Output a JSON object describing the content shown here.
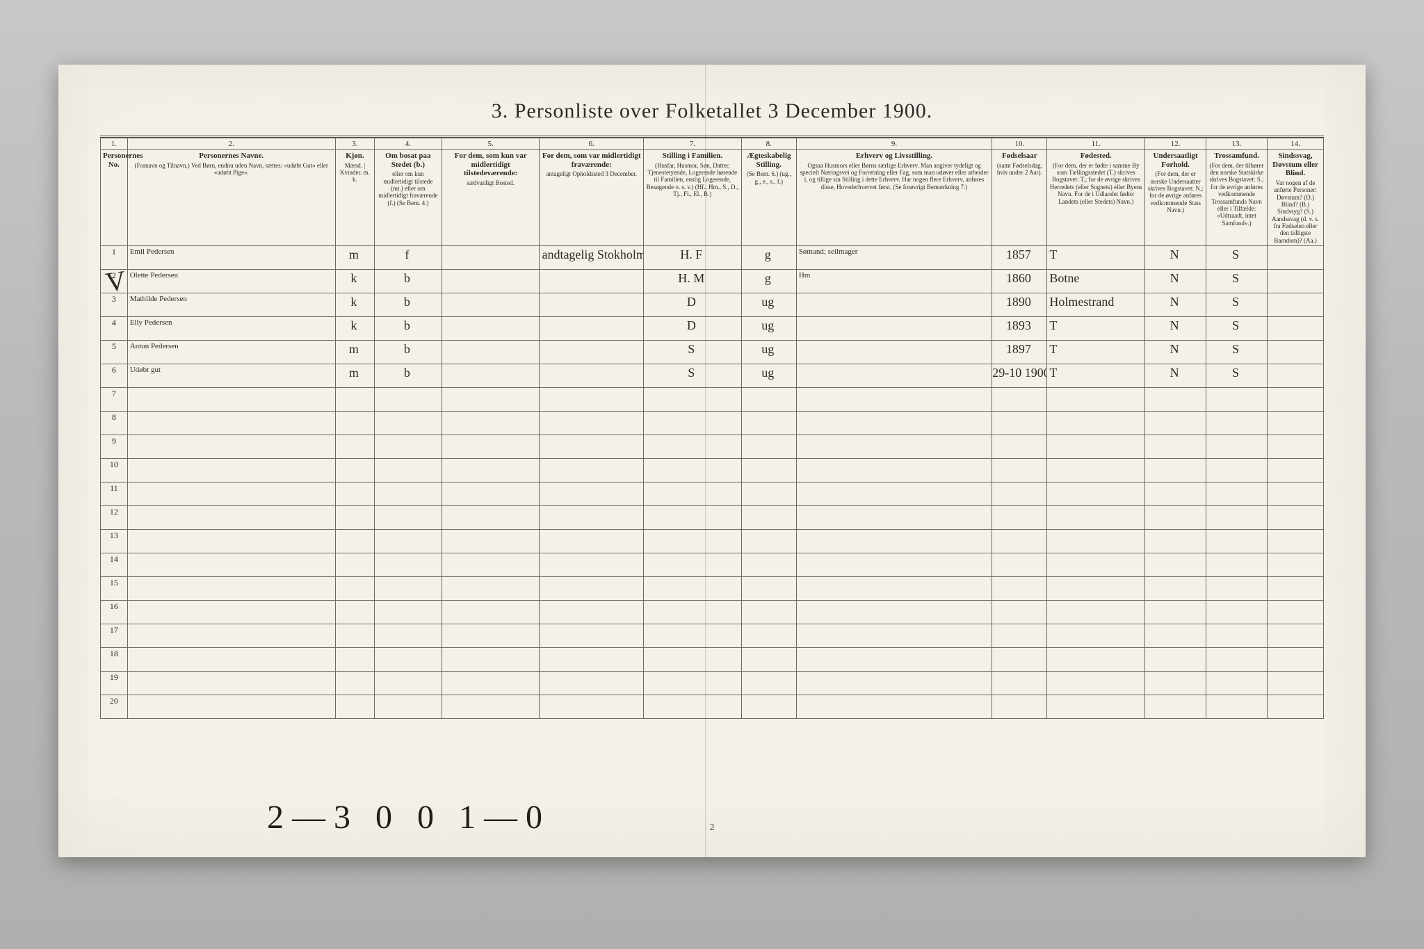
{
  "title": "3. Personliste over Folketallet 3 December 1900.",
  "page_number": "2",
  "bottom_annotation": "2—3 0 0 1—0",
  "columns": {
    "c1": {
      "num": "1.",
      "title": "Personernes No."
    },
    "c2": {
      "num": "2.",
      "title": "Personernes Navne.",
      "sub": "(Fornavn og Tilnavn.)\nVed Børn, endnu uden Navn, sættes: «udøbt Gut» eller «udøbt Pige»."
    },
    "c3": {
      "num": "3.",
      "title": "Kjøn.",
      "sub": "Mænd. | Kvinder.\nm.  k."
    },
    "c4": {
      "num": "4.",
      "title": "Om bosat paa Stedet (b.)",
      "sub": "eller om kun midlertidigt tilstede (mt.) eller om midlertidigt fraværende (f.)\n(Se Bem. 4.)"
    },
    "c5": {
      "num": "5.",
      "title": "For dem, som kun var midlertidigt tilstedeværende:",
      "sub": "sædvanligt Bosted."
    },
    "c6": {
      "num": "6.",
      "title": "For dem, som var midlertidigt fraværende:",
      "sub": "antageligt Opholdssted 3 December."
    },
    "c7": {
      "num": "7.",
      "title": "Stilling i Familien.",
      "sub": "(Husfar, Husmor, Søn, Datter, Tjenestetyende, Logerende hørende til Familien, enslig Logerende, Besøgende o. s. v.)\n(Hf., Hm., S., D., Tj., Fl., El., B.)"
    },
    "c8": {
      "num": "8.",
      "title": "Ægteskabelig Stilling.",
      "sub": "(Se Bem. 6.)\n(ug., g., e., s., f.)"
    },
    "c9": {
      "num": "9.",
      "title": "Erhverv og Livsstilling.",
      "sub": "Ogsaa Husmors eller Børns særlige Erhverv. Man angiver tydeligt og specielt Næringsvei og Forretning eller Fag, som man udøver eller arbeider i, og tillige sin Stilling i dette Erhverv. Har nogen flere Erhverv, anføres disse, Hovederhvervet først.\n(Se forøvrigt Bemærkning 7.)"
    },
    "c10": {
      "num": "10.",
      "title": "Fødselsaar",
      "sub": "(samt Fødselsdag, hvis under 2 Aar)."
    },
    "c11": {
      "num": "11.",
      "title": "Fødested.",
      "sub": "(For dem, der er fødte i samme By som Tællingsstedet (T.) skrives Bogstavet: T.; for de øvrige skrives Herredets (eller Sognets) eller Byens Navn. For de i Udlandet fødte: Landets (eller Stedets) Navn.)"
    },
    "c12": {
      "num": "12.",
      "title": "Undersaatligt Forhold.",
      "sub": "(For dem, der er norske Undersaatter skrives Bogstavet: N.; for de øvrige anføres vedkommende Stats Navn.)"
    },
    "c13": {
      "num": "13.",
      "title": "Trossamfund.",
      "sub": "(For dem, der tilhører den norske Statskirke skrives Bogstavet: S.; for de øvrige anføres vedkommende Trossamfunds Navn eller i Tilfælde: «Udtraadt, intet Samfund».)"
    },
    "c14": {
      "num": "14.",
      "title": "Sindssvag, Døvstum eller Blind.",
      "sub": "Var nogen af de anførte Personer:\nDøvstum? (D.)\nBlind? (B.)\nSindssyg? (S.)\nAandssvag (d. v. s. fra Fødselen eller den tidligste Barndom)? (Aa.)"
    }
  },
  "col_widths_pct": [
    2.2,
    17,
    3.2,
    5.5,
    8,
    8.5,
    8,
    4.5,
    16,
    4.5,
    8,
    5,
    5,
    4.6
  ],
  "rows": [
    {
      "n": "1",
      "name": "Emil Pedersen",
      "mk": "m",
      "res": "f",
      "c5": "",
      "c6": "andtagelig Stokholm",
      "fam": "H. F",
      "civ": "g",
      "occ": "Sømand; seilmager",
      "year": "1857",
      "birthplace": "T",
      "nat": "N",
      "rel": "S",
      "dis": ""
    },
    {
      "n": "2",
      "name": "Olette Pedersen",
      "mk": "k",
      "res": "b",
      "c5": "",
      "c6": "",
      "fam": "H. M",
      "civ": "g",
      "occ": "Hm",
      "year": "1860",
      "birthplace": "Botne",
      "nat": "N",
      "rel": "S",
      "dis": ""
    },
    {
      "n": "3",
      "name": "Mathilde Pedersen",
      "mk": "k",
      "res": "b",
      "c5": "",
      "c6": "",
      "fam": "D",
      "civ": "ug",
      "occ": "",
      "year": "1890",
      "birthplace": "Holmestrand",
      "nat": "N",
      "rel": "S",
      "dis": ""
    },
    {
      "n": "4",
      "name": "Elly Pedersen",
      "mk": "k",
      "res": "b",
      "c5": "",
      "c6": "",
      "fam": "D",
      "civ": "ug",
      "occ": "",
      "year": "1893",
      "birthplace": "T",
      "nat": "N",
      "rel": "S",
      "dis": ""
    },
    {
      "n": "5",
      "name": "Anton Pedersen",
      "mk": "m",
      "res": "b",
      "c5": "",
      "c6": "",
      "fam": "S",
      "civ": "ug",
      "occ": "",
      "year": "1897",
      "birthplace": "T",
      "nat": "N",
      "rel": "S",
      "dis": ""
    },
    {
      "n": "6",
      "name": "Udøbt gut",
      "mk": "m",
      "res": "b",
      "c5": "",
      "c6": "",
      "fam": "S",
      "civ": "ug",
      "occ": "",
      "year": "29-10 1900",
      "birthplace": "T",
      "nat": "N",
      "rel": "S",
      "dis": ""
    }
  ],
  "empty_rows": [
    7,
    8,
    9,
    10,
    11,
    12,
    13,
    14,
    15,
    16,
    17,
    18,
    19,
    20
  ],
  "colors": {
    "paper": "#f4f1e8",
    "ink": "#2a2a28",
    "handwriting": "#3a362e",
    "rule": "#6a6a64",
    "desk": "#b8b8b6"
  },
  "fonts": {
    "print": "Georgia, 'Times New Roman', serif",
    "script": "'Brush Script MT', 'Segoe Script', cursive",
    "title_size_pt": 22,
    "header_size_pt": 8,
    "body_script_size_pt": 16
  }
}
